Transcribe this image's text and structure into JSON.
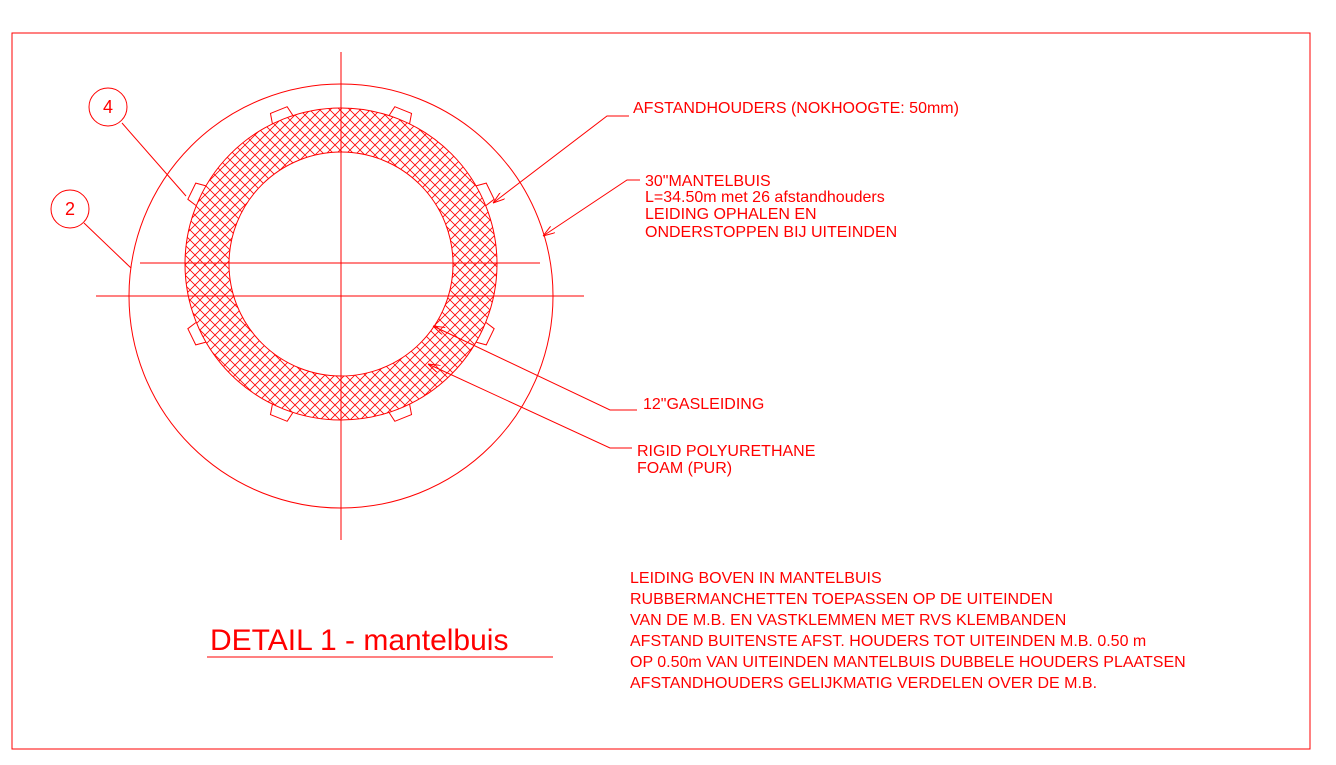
{
  "title": "DETAIL 1 - mantelbuis",
  "callouts": [
    "4",
    "2"
  ],
  "labels": {
    "spacers": "AFSTANDHOUDERS (NOKHOOGTE: 50mm)",
    "casing": [
      "30\"MANTELBUIS",
      "L=34.50m met 26 afstandhouders",
      "LEIDING OPHALEN EN",
      "ONDERSTOPPEN BIJ UITEINDEN"
    ],
    "pipe": "12\"GASLEIDING",
    "foam": [
      "RIGID POLYURETHANE",
      "FOAM (PUR)"
    ]
  },
  "notes": [
    "LEIDING BOVEN IN MANTELBUIS",
    "RUBBERMANCHETTEN TOEPASSEN OP DE UITEINDEN",
    "VAN DE M.B. EN VASTKLEMMEN MET RVS KLEMBANDEN",
    "AFSTAND BUITENSTE AFST. HOUDERS TOT UITEINDEN M.B. 0.50 m",
    "OP 0.50m VAN UITEINDEN MANTELBUIS DUBBELE HOUDERS PLAATSEN",
    "AFSTANDHOUDERS GELIJKMATIG VERDELEN OVER DE M.B."
  ]
}
